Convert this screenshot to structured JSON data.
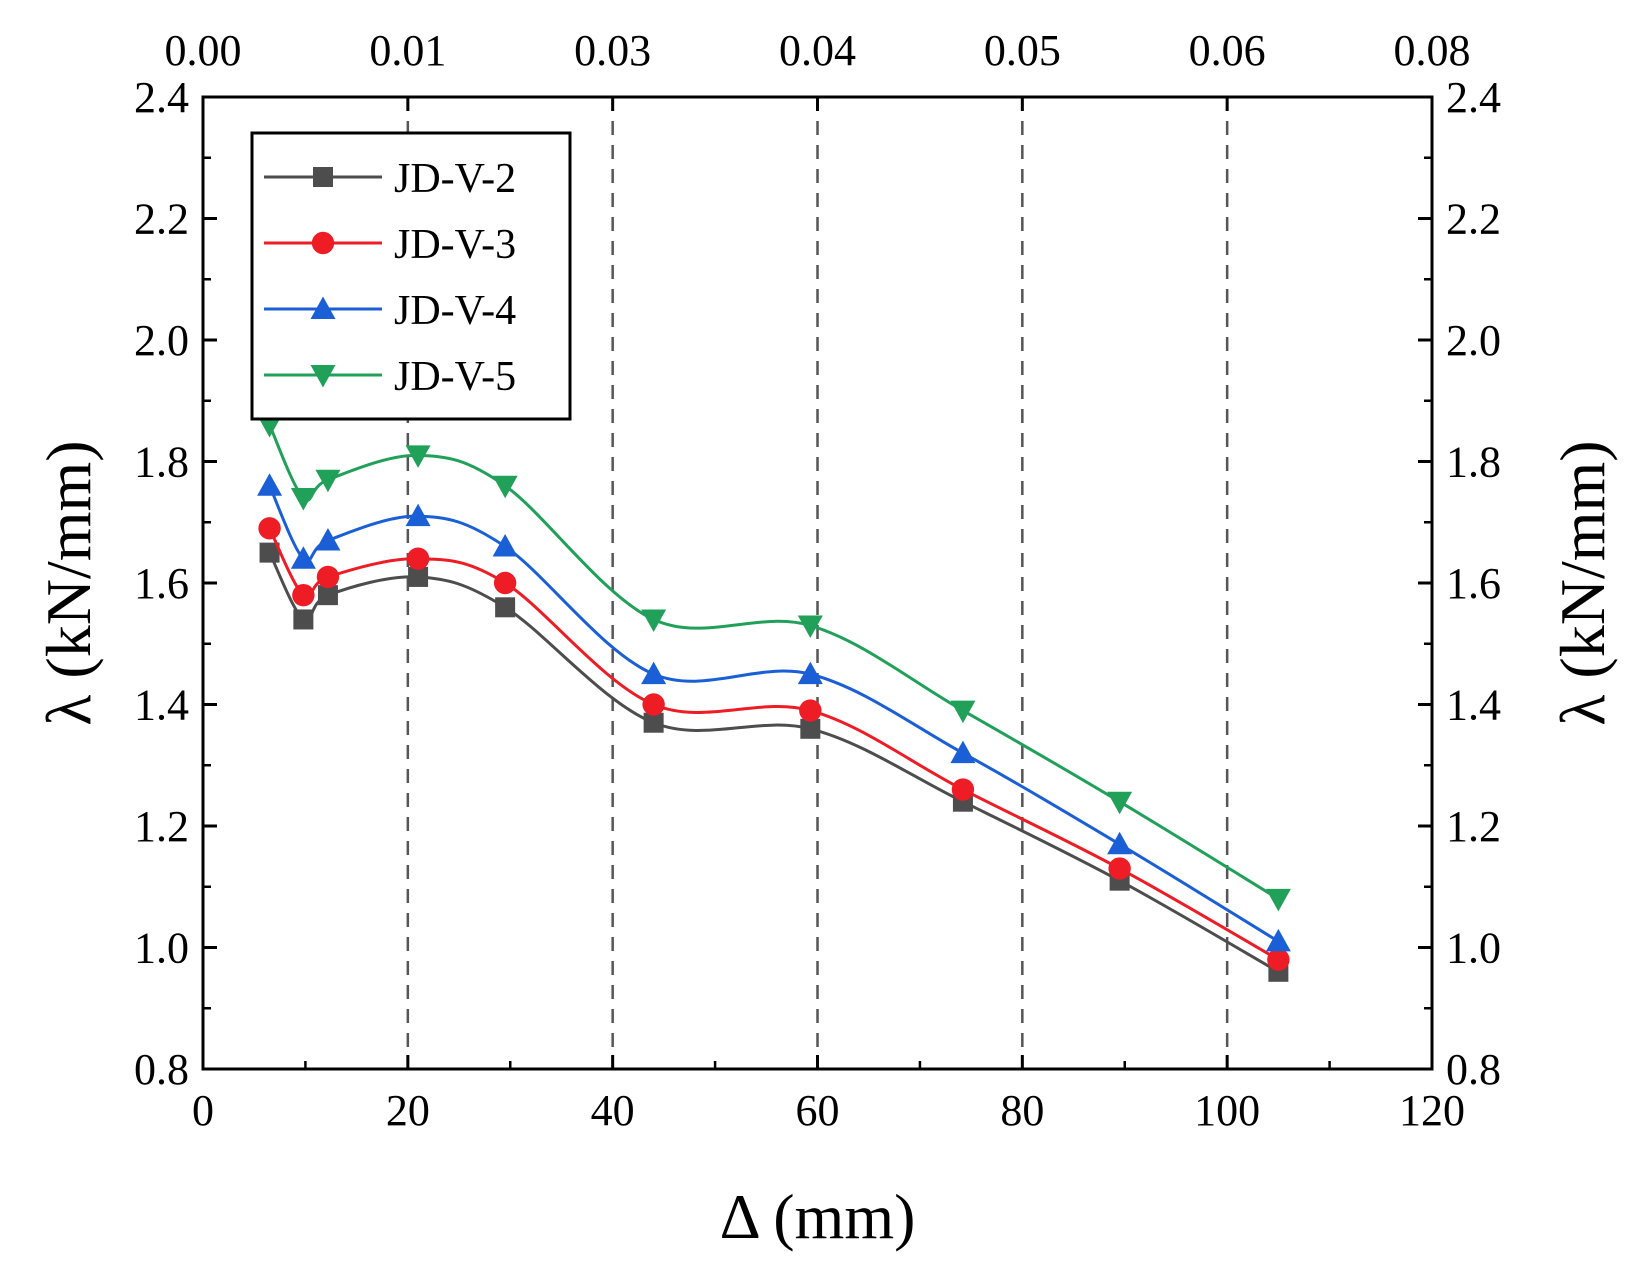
{
  "chart_data": {
    "type": "line",
    "xlabel": "Δ (mm)",
    "ylabel": "λ (kN/mm)",
    "ylabel_right": "λ (kN/mm)",
    "xlim": [
      0,
      120
    ],
    "ylim": [
      0.8,
      2.4
    ],
    "x_ticks": [
      "0",
      "20",
      "40",
      "60",
      "80",
      "100",
      "120"
    ],
    "y_ticks": [
      "0.8",
      "1.0",
      "1.2",
      "1.4",
      "1.6",
      "1.8",
      "2.0",
      "2.2",
      "2.4"
    ],
    "top_ticks": [
      "0.00",
      "0.01",
      "0.03",
      "0.04",
      "0.05",
      "0.06",
      "0.08"
    ],
    "grid_x": [
      20,
      40,
      60,
      80,
      100
    ],
    "grid_style": "dashed vertical lines",
    "legend_position": "top-left",
    "x": [
      6.5,
      9.8,
      12.2,
      21,
      29.5,
      44,
      59.3,
      74.2,
      89.5,
      105
    ],
    "series": [
      {
        "name": "JD-V-2",
        "color": "#4d4d4d",
        "marker": "square",
        "values": [
          1.65,
          1.54,
          1.58,
          1.61,
          1.56,
          1.37,
          1.36,
          1.24,
          1.11,
          0.96
        ]
      },
      {
        "name": "JD-V-3",
        "color": "#ee1c25",
        "marker": "circle",
        "values": [
          1.69,
          1.58,
          1.61,
          1.64,
          1.6,
          1.4,
          1.39,
          1.26,
          1.13,
          0.98
        ]
      },
      {
        "name": "JD-V-4",
        "color": "#1a5fd6",
        "marker": "triangle-up",
        "values": [
          1.76,
          1.64,
          1.67,
          1.71,
          1.66,
          1.45,
          1.45,
          1.32,
          1.17,
          1.01
        ]
      },
      {
        "name": "JD-V-5",
        "color": "#21a05a",
        "marker": "triangle-down",
        "values": [
          1.86,
          1.74,
          1.77,
          1.81,
          1.76,
          1.54,
          1.53,
          1.39,
          1.24,
          1.08
        ]
      }
    ]
  }
}
